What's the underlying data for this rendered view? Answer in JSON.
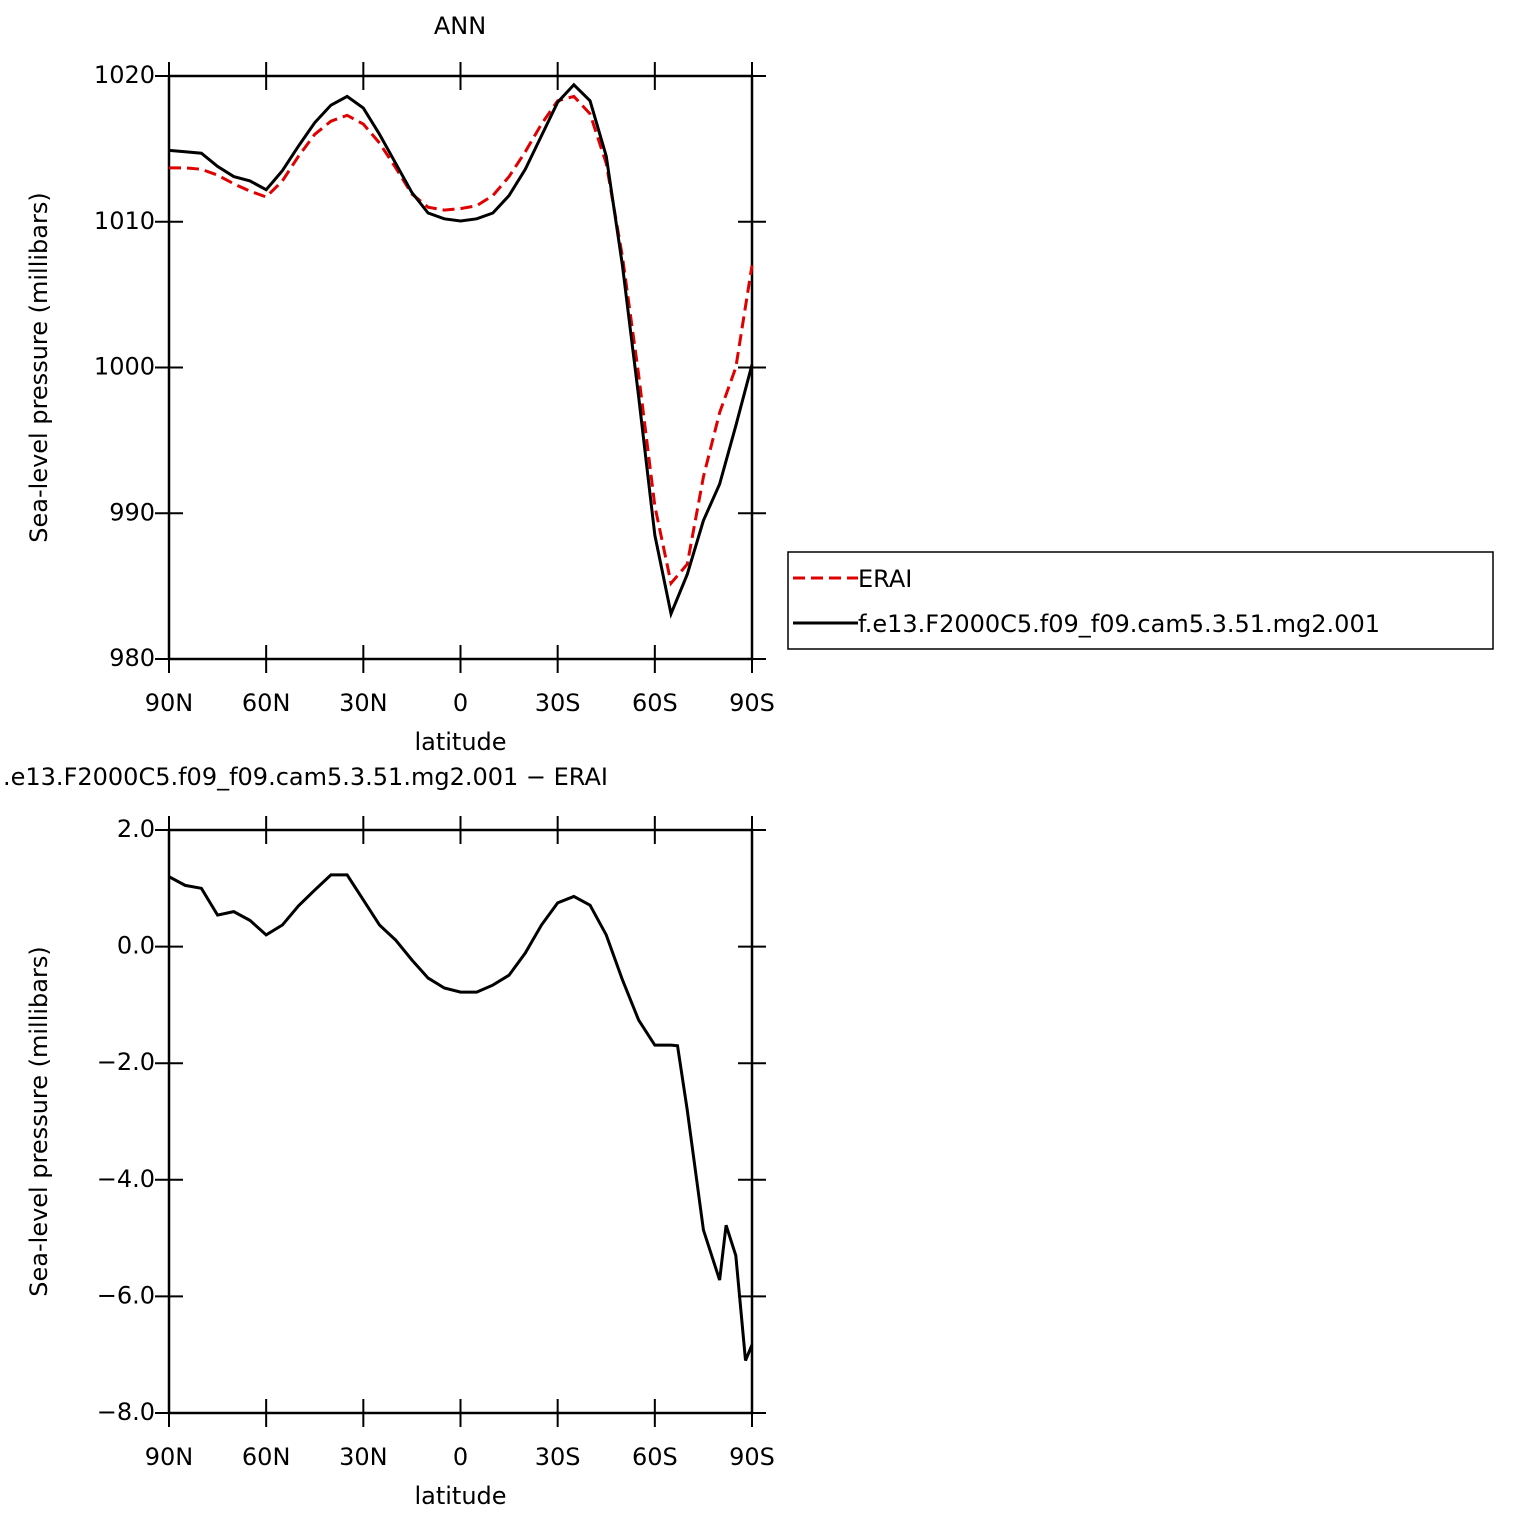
{
  "chart_data": [
    {
      "type": "line",
      "title": "ANN",
      "xlabel": "latitude",
      "ylabel": "Sea-level pressure (millibars)",
      "x": [
        90,
        85,
        80,
        75,
        70,
        65,
        60,
        55,
        50,
        45,
        40,
        35,
        30,
        25,
        20,
        15,
        10,
        5,
        0,
        -5,
        -10,
        -15,
        -20,
        -25,
        -30,
        -35,
        -40,
        -45,
        -50,
        -55,
        -60,
        -65,
        -70,
        -75,
        -80,
        -85,
        -90
      ],
      "series": [
        {
          "name": "ERAI",
          "color": "#e00000",
          "linestyle": "dashed",
          "values": [
            1013.7,
            1013.7,
            1013.6,
            1013.2,
            1012.6,
            1012.1,
            1011.7,
            1012.8,
            1014.5,
            1016.0,
            1016.9,
            1017.3,
            1016.7,
            1015.4,
            1013.7,
            1011.9,
            1011.0,
            1010.8,
            1010.9,
            1011.1,
            1011.8,
            1013.1,
            1014.8,
            1016.7,
            1018.3,
            1018.6,
            1017.4,
            1014.0,
            1007.6,
            999.5,
            990.5,
            985.2,
            986.5,
            992.5,
            996.9,
            1000.0,
            1007.0
          ]
        },
        {
          "name": "f.e13.F2000C5.f09_f09.cam5.3.51.mg2.001",
          "color": "#000000",
          "linestyle": "solid",
          "values": [
            1014.9,
            1014.8,
            1014.7,
            1013.8,
            1013.1,
            1012.8,
            1012.2,
            1013.5,
            1015.2,
            1016.8,
            1018.0,
            1018.6,
            1017.8,
            1016.0,
            1014.0,
            1012.0,
            1010.6,
            1010.2,
            1010.05,
            1010.2,
            1010.6,
            1011.8,
            1013.6,
            1015.9,
            1018.2,
            1019.4,
            1018.3,
            1014.5,
            1007.0,
            998.0,
            988.5,
            983.1,
            985.8,
            989.5,
            992.0,
            996.0,
            1000.2
          ]
        }
      ],
      "xlim": [
        90,
        -90
      ],
      "xticks": [
        {
          "value": 90,
          "label": "90N"
        },
        {
          "value": 60,
          "label": "60N"
        },
        {
          "value": 30,
          "label": "30N"
        },
        0,
        {
          "value": -30,
          "label": "30S"
        },
        {
          "value": -60,
          "label": "60S"
        },
        {
          "value": -90,
          "label": "90S"
        }
      ],
      "ylim": [
        980,
        1020
      ],
      "yticks": [
        980,
        990,
        1000,
        1010,
        1020
      ],
      "legend": "right"
    },
    {
      "type": "line",
      "title": ".e13.F2000C5.f09_f09.cam5.3.51.mg2.001 − ERAI",
      "xlabel": "latitude",
      "ylabel": "Sea-level pressure (millibars)",
      "x": [
        90,
        85,
        80,
        75,
        70,
        65,
        60,
        55,
        50,
        45,
        40,
        35,
        30,
        25,
        20,
        15,
        10,
        5,
        0,
        -5,
        -10,
        -15,
        -20,
        -25,
        -30,
        -35,
        -40,
        -45,
        -50,
        -55,
        -60,
        -65,
        -67,
        -70,
        -75,
        -80,
        -82,
        -85,
        -88,
        -90
      ],
      "series": [
        {
          "name": "diff",
          "color": "#000000",
          "linestyle": "solid",
          "values": [
            1.2,
            1.05,
            1.0,
            0.54,
            0.6,
            0.45,
            0.2,
            0.37,
            0.7,
            0.97,
            1.23,
            1.23,
            0.8,
            0.37,
            0.11,
            -0.23,
            -0.54,
            -0.71,
            -0.78,
            -0.78,
            -0.66,
            -0.49,
            -0.11,
            0.37,
            0.75,
            0.86,
            0.71,
            0.2,
            -0.57,
            -1.26,
            -1.69,
            -1.69,
            -1.7,
            -2.8,
            -4.86,
            -5.72,
            -4.78,
            -5.3,
            -7.1,
            -6.83
          ]
        }
      ],
      "xlim": [
        90,
        -90
      ],
      "xticks": [
        {
          "value": 90,
          "label": "90N"
        },
        {
          "value": 60,
          "label": "60N"
        },
        {
          "value": 30,
          "label": "30N"
        },
        0,
        {
          "value": -30,
          "label": "30S"
        },
        {
          "value": -60,
          "label": "60S"
        },
        {
          "value": -90,
          "label": "90S"
        }
      ],
      "ylim": [
        -8,
        2
      ],
      "yticks": [
        {
          "value": -8,
          "label": "−8.0"
        },
        {
          "value": -6,
          "label": "−6.0"
        },
        {
          "value": -4,
          "label": "−4.0"
        },
        {
          "value": -2,
          "label": "−2.0"
        },
        {
          "value": 0,
          "label": "0.0"
        },
        {
          "value": 2,
          "label": "2.0"
        }
      ]
    }
  ]
}
